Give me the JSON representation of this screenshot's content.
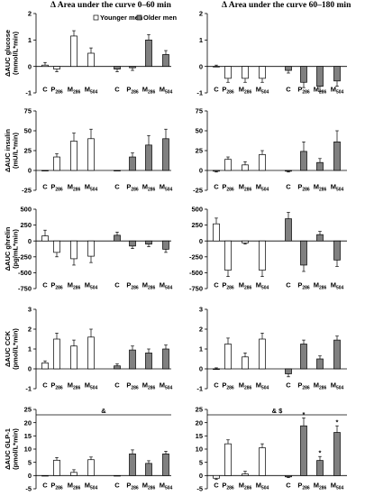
{
  "titles": {
    "left": "Δ Area under the curve 0–60 min",
    "right": "Δ Area under the curve 60–180 min"
  },
  "legend": {
    "younger": "Younger men",
    "older": "Older men"
  },
  "colors": {
    "younger": "#ffffff",
    "older": "#808080",
    "stroke": "#000000"
  },
  "chart_data": [
    {
      "type": "bar",
      "row": 0,
      "col": 0,
      "ylabel": [
        "ΔAUC glucose",
        "(mmol/L*min)"
      ],
      "yticks": [
        -1,
        0,
        1,
        2
      ],
      "ylim": [
        -1,
        2
      ],
      "categories": [
        [
          "C",
          ""
        ],
        [
          "P",
          "286"
        ],
        [
          "M",
          "286"
        ],
        [
          "M",
          "504"
        ]
      ],
      "series": [
        {
          "name": "Younger men",
          "values": [
            0.05,
            -0.1,
            1.15,
            0.5
          ],
          "errors": [
            0.1,
            0.1,
            0.2,
            0.2
          ]
        },
        {
          "name": "Older men",
          "values": [
            -0.1,
            -0.05,
            1.0,
            0.45
          ],
          "errors": [
            0.1,
            0.1,
            0.2,
            0.15
          ]
        }
      ],
      "annotation": ""
    },
    {
      "type": "bar",
      "row": 0,
      "col": 1,
      "ylabel": [],
      "yticks": [
        -1,
        0,
        1,
        2
      ],
      "ylim": [
        -1,
        2
      ],
      "categories": [
        [
          "C",
          ""
        ],
        [
          "P",
          "286"
        ],
        [
          "M",
          "286"
        ],
        [
          "M",
          "504"
        ]
      ],
      "series": [
        {
          "name": "Younger men",
          "values": [
            0.0,
            -0.45,
            -0.45,
            -0.45
          ],
          "errors": [
            0.05,
            0.15,
            0.15,
            0.15
          ]
        },
        {
          "name": "Older men",
          "values": [
            -0.15,
            -0.6,
            -0.75,
            -0.55
          ],
          "errors": [
            0.1,
            0.2,
            0.2,
            0.2
          ]
        }
      ],
      "annotation": ""
    },
    {
      "type": "bar",
      "row": 1,
      "col": 0,
      "ylabel": [
        "ΔAUC insulin",
        "(mU/L*min)"
      ],
      "yticks": [
        -25,
        0,
        25,
        50,
        75
      ],
      "ylim": [
        -25,
        75
      ],
      "categories": [
        [
          "C",
          ""
        ],
        [
          "P",
          "286"
        ],
        [
          "M",
          "286"
        ],
        [
          "M",
          "504"
        ]
      ],
      "series": [
        {
          "name": "Younger men",
          "values": [
            0,
            17,
            37,
            40
          ],
          "errors": [
            0,
            4,
            10,
            12
          ]
        },
        {
          "name": "Older men",
          "values": [
            0,
            17,
            32,
            40
          ],
          "errors": [
            0,
            5,
            12,
            12
          ]
        }
      ],
      "annotation": ""
    },
    {
      "type": "bar",
      "row": 1,
      "col": 1,
      "ylabel": [],
      "yticks": [
        -25,
        0,
        25,
        50,
        75
      ],
      "ylim": [
        -25,
        75
      ],
      "categories": [
        [
          "C",
          ""
        ],
        [
          "P",
          "286"
        ],
        [
          "M",
          "286"
        ],
        [
          "M",
          "504"
        ]
      ],
      "series": [
        {
          "name": "Younger men",
          "values": [
            -1,
            14,
            7,
            20
          ],
          "errors": [
            1,
            3,
            4,
            5
          ]
        },
        {
          "name": "Older men",
          "values": [
            -1,
            24,
            10,
            36
          ],
          "errors": [
            1,
            12,
            5,
            14
          ]
        }
      ],
      "annotation": ""
    },
    {
      "type": "bar",
      "row": 2,
      "col": 0,
      "ylabel": [
        "ΔAUC ghrelin",
        "(pg/mL*min)"
      ],
      "yticks": [
        -750,
        -500,
        -250,
        0,
        250,
        500
      ],
      "ylim": [
        -750,
        500
      ],
      "categories": [
        [
          "C",
          ""
        ],
        [
          "P",
          "286"
        ],
        [
          "M",
          "286"
        ],
        [
          "M",
          "504"
        ]
      ],
      "series": [
        {
          "name": "Younger men",
          "values": [
            80,
            -180,
            -280,
            -240
          ],
          "errors": [
            90,
            70,
            100,
            100
          ]
        },
        {
          "name": "Older men",
          "values": [
            90,
            -80,
            -50,
            -130
          ],
          "errors": [
            50,
            40,
            40,
            50
          ]
        }
      ],
      "annotation": ""
    },
    {
      "type": "bar",
      "row": 2,
      "col": 1,
      "ylabel": [],
      "yticks": [
        -750,
        -500,
        -250,
        0,
        250,
        500
      ],
      "ylim": [
        -750,
        500
      ],
      "categories": [
        [
          "C",
          ""
        ],
        [
          "P",
          "286"
        ],
        [
          "M",
          "286"
        ],
        [
          "M",
          "504"
        ]
      ],
      "series": [
        {
          "name": "Younger men",
          "values": [
            270,
            -460,
            -30,
            -460
          ],
          "errors": [
            90,
            100,
            20,
            100
          ]
        },
        {
          "name": "Older men",
          "values": [
            350,
            -380,
            100,
            -300
          ],
          "errors": [
            100,
            100,
            50,
            100
          ]
        }
      ],
      "annotation": ""
    },
    {
      "type": "bar",
      "row": 3,
      "col": 0,
      "ylabel": [
        "ΔAUC CCK",
        "(pmol/L*min)"
      ],
      "yticks": [
        -1,
        0,
        1,
        2,
        3
      ],
      "ylim": [
        -1,
        3
      ],
      "categories": [
        [
          "C",
          ""
        ],
        [
          "P",
          "286"
        ],
        [
          "M",
          "286"
        ],
        [
          "M",
          "504"
        ]
      ],
      "series": [
        {
          "name": "Younger men",
          "values": [
            0.3,
            1.5,
            1.15,
            1.6
          ],
          "errors": [
            0.1,
            0.3,
            0.3,
            0.4
          ]
        },
        {
          "name": "Older men",
          "values": [
            0.15,
            0.95,
            0.8,
            1.0
          ],
          "errors": [
            0.1,
            0.2,
            0.2,
            0.2
          ]
        }
      ],
      "annotation": ""
    },
    {
      "type": "bar",
      "row": 3,
      "col": 1,
      "ylabel": [],
      "yticks": [
        -1,
        0,
        1,
        2,
        3
      ],
      "ylim": [
        -1,
        3
      ],
      "categories": [
        [
          "C",
          ""
        ],
        [
          "P",
          "286"
        ],
        [
          "M",
          "286"
        ],
        [
          "M",
          "504"
        ]
      ],
      "series": [
        {
          "name": "Younger men",
          "values": [
            0.0,
            1.25,
            0.6,
            1.5
          ],
          "errors": [
            0.05,
            0.3,
            0.2,
            0.3
          ]
        },
        {
          "name": "Older men",
          "values": [
            -0.25,
            1.25,
            0.5,
            1.45
          ],
          "errors": [
            0.15,
            0.2,
            0.15,
            0.2
          ]
        }
      ],
      "annotation": ""
    },
    {
      "type": "bar",
      "row": 4,
      "col": 0,
      "ylabel": [
        "ΔAUC GLP-1",
        "(pmol/L*min)"
      ],
      "yticks": [
        -5,
        0,
        5,
        10,
        15,
        20,
        25
      ],
      "ylim": [
        -5,
        25
      ],
      "categories": [
        [
          "C",
          ""
        ],
        [
          "P",
          "286"
        ],
        [
          "M",
          "286"
        ],
        [
          "M",
          "504"
        ]
      ],
      "series": [
        {
          "name": "Younger men",
          "values": [
            0,
            5.8,
            1.2,
            6.0
          ],
          "errors": [
            0,
            1,
            1,
            1
          ]
        },
        {
          "name": "Older men",
          "values": [
            0,
            8.2,
            4.6,
            8.2
          ],
          "errors": [
            0,
            1.5,
            1,
            1
          ]
        }
      ],
      "annotation": "&",
      "stars": []
    },
    {
      "type": "bar",
      "row": 4,
      "col": 1,
      "ylabel": [],
      "yticks": [
        -5,
        0,
        5,
        10,
        15,
        20,
        25
      ],
      "ylim": [
        -5,
        25
      ],
      "categories": [
        [
          "C",
          ""
        ],
        [
          "P",
          "286"
        ],
        [
          "M",
          "286"
        ],
        [
          "M",
          "504"
        ]
      ],
      "series": [
        {
          "name": "Younger men",
          "values": [
            -1,
            12,
            0.6,
            10.5
          ],
          "errors": [
            0.5,
            1.5,
            1,
            1.5
          ]
        },
        {
          "name": "Older men",
          "values": [
            -0.5,
            18.8,
            5.7,
            16.3
          ],
          "errors": [
            0.3,
            3,
            1.5,
            2.5
          ]
        }
      ],
      "annotation": "& $",
      "stars": [
        "*",
        "*",
        "*"
      ]
    }
  ]
}
